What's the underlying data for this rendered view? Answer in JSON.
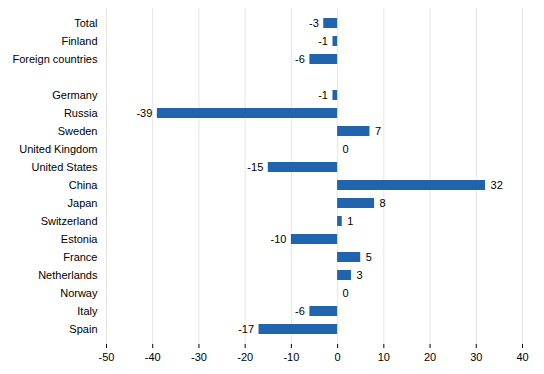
{
  "chart_data": {
    "type": "bar",
    "orientation": "horizontal",
    "categories": [
      "Total",
      "Finland",
      "Foreign countries",
      null,
      "Germany",
      "Russia",
      "Sweden",
      "United Kingdom",
      "United States",
      "China",
      "Japan",
      "Switzerland",
      "Estonia",
      "France",
      "Netherlands",
      "Norway",
      "Italy",
      "Spain"
    ],
    "values": [
      -3,
      -1,
      -6,
      null,
      -1,
      -39,
      7,
      0,
      -15,
      32,
      8,
      1,
      -10,
      5,
      3,
      0,
      -6,
      -17
    ],
    "color": "#1f64ad",
    "xlim": [
      -50,
      40
    ],
    "xticks": [
      -50,
      -40,
      -30,
      -20,
      -10,
      0,
      10,
      20,
      30,
      40
    ],
    "grid": true,
    "data_labels": true
  }
}
